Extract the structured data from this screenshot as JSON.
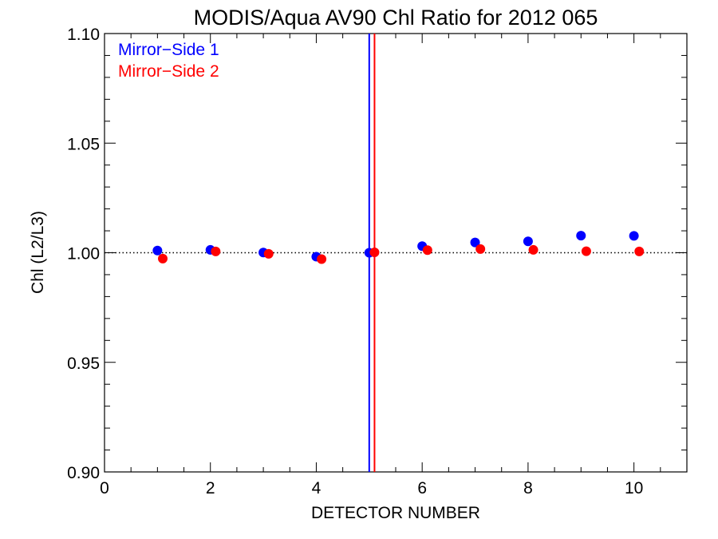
{
  "chart_data": {
    "type": "scatter",
    "title": "MODIS/Aqua AV90 Chl Ratio for 2012 065",
    "xlabel": "DETECTOR NUMBER",
    "ylabel": "Chl (L2/L3)",
    "xlim": [
      0,
      11
    ],
    "ylim": [
      0.9,
      1.1
    ],
    "x_ticks": [
      0,
      2,
      4,
      6,
      8,
      10
    ],
    "y_ticks": [
      0.9,
      0.95,
      1.0,
      1.05,
      1.1
    ],
    "x_tick_labels": [
      "0",
      "2",
      "4",
      "6",
      "8",
      "10"
    ],
    "y_tick_labels": [
      "0.90",
      "0.95",
      "1.00",
      "1.05",
      "1.10"
    ],
    "reference_line": 1.0,
    "legend_position": "top-left",
    "series": [
      {
        "name": "Mirror−Side 1",
        "color": "#0000ff",
        "x": [
          1,
          2,
          3,
          4,
          5,
          6,
          7,
          8,
          9,
          10
        ],
        "y": [
          1.001,
          1.0013,
          1.0001,
          0.9982,
          1.0,
          1.003,
          1.0047,
          1.0052,
          1.0078,
          1.0077
        ],
        "vline_x": 5.0
      },
      {
        "name": "Mirror−Side 2",
        "color": "#ff0000",
        "x": [
          1.1,
          2.1,
          3.1,
          4.1,
          5.1,
          6.1,
          7.1,
          8.1,
          9.1,
          10.1
        ],
        "y": [
          0.9973,
          1.0006,
          0.9995,
          0.9971,
          1.0002,
          1.0012,
          1.0017,
          1.0013,
          1.0007,
          1.0006
        ],
        "vline_x": 5.1
      }
    ]
  }
}
